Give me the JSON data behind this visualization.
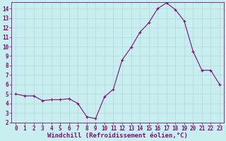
{
  "x": [
    0,
    1,
    2,
    3,
    4,
    5,
    6,
    7,
    8,
    9,
    10,
    11,
    12,
    13,
    14,
    15,
    16,
    17,
    18,
    19,
    20,
    21,
    22,
    23
  ],
  "y": [
    5.0,
    4.8,
    4.8,
    4.3,
    4.4,
    4.4,
    4.5,
    4.0,
    2.6,
    2.4,
    4.7,
    5.5,
    8.6,
    9.9,
    11.5,
    12.5,
    14.0,
    14.6,
    13.9,
    12.7,
    9.5,
    7.5,
    7.5,
    6.0
  ],
  "line_color": "#7b0e7b",
  "marker": "+",
  "marker_color": "#7b0e7b",
  "bg_color": "#c8eef0",
  "grid_color": "#b0d8da",
  "xlabel": "Windchill (Refroidissement éolien,°C)",
  "xlabel_color": "#7b0e7b",
  "xlim": [
    -0.5,
    23.5
  ],
  "ylim": [
    2,
    14.7
  ],
  "yticks": [
    2,
    3,
    4,
    5,
    6,
    7,
    8,
    9,
    10,
    11,
    12,
    13,
    14
  ],
  "xticks": [
    0,
    1,
    2,
    3,
    4,
    5,
    6,
    7,
    8,
    9,
    10,
    11,
    12,
    13,
    14,
    15,
    16,
    17,
    18,
    19,
    20,
    21,
    22,
    23
  ],
  "tick_color": "#7b0e7b",
  "tick_fontsize": 5.5,
  "xlabel_fontsize": 6.5,
  "linewidth": 0.8,
  "markersize": 3.0,
  "spine_color": "#7b0e7b"
}
